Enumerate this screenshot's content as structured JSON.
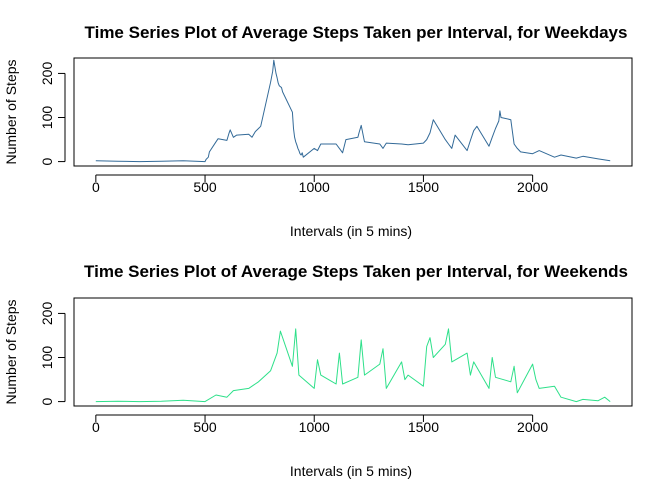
{
  "chart_data": [
    {
      "type": "line",
      "title": "Time Series Plot of Average Steps Taken per Interval, for Weekdays",
      "xlabel": "Intervals (in 5 mins)",
      "ylabel": "Number of Steps",
      "xlim": [
        -100,
        2455
      ],
      "ylim": [
        -10,
        235
      ],
      "xticks": [
        0,
        500,
        1000,
        1500,
        2000
      ],
      "yticks": [
        0,
        100,
        200
      ],
      "grid": false,
      "series": [
        {
          "color": "#336A98",
          "x": [
            0,
            100,
            200,
            300,
            400,
            500,
            505,
            515,
            520,
            550,
            560,
            600,
            610,
            615,
            630,
            645,
            700,
            715,
            730,
            745,
            755,
            800,
            810,
            815,
            820,
            825,
            830,
            835,
            840,
            845,
            850,
            855,
            900,
            905,
            910,
            915,
            920,
            925,
            930,
            935,
            940,
            945,
            950,
            1000,
            1015,
            1030,
            1100,
            1115,
            1130,
            1145,
            1200,
            1205,
            1215,
            1230,
            1300,
            1315,
            1330,
            1400,
            1430,
            1500,
            1515,
            1530,
            1545,
            1600,
            1615,
            1630,
            1645,
            1700,
            1715,
            1730,
            1745,
            1800,
            1815,
            1830,
            1845,
            1850,
            1855,
            1900,
            1915,
            1930,
            1945,
            2000,
            2030,
            2100,
            2130,
            2200,
            2230,
            2300,
            2355
          ],
          "y": [
            2,
            1,
            0,
            1,
            2,
            0,
            5,
            10,
            22,
            45,
            52,
            48,
            65,
            72,
            55,
            60,
            62,
            55,
            68,
            75,
            80,
            180,
            205,
            230,
            215,
            200,
            190,
            178,
            172,
            170,
            168,
            158,
            112,
            75,
            55,
            45,
            38,
            30,
            25,
            18,
            15,
            20,
            10,
            30,
            25,
            40,
            40,
            30,
            20,
            50,
            55,
            65,
            82,
            45,
            40,
            30,
            42,
            40,
            38,
            42,
            50,
            65,
            95,
            50,
            40,
            30,
            60,
            25,
            48,
            70,
            80,
            35,
            55,
            75,
            92,
            115,
            100,
            95,
            40,
            30,
            22,
            18,
            25,
            10,
            15,
            8,
            12,
            6,
            2
          ]
        }
      ]
    },
    {
      "type": "line",
      "title": "Time Series Plot of Average Steps Taken per Interval, for Weekends",
      "xlabel": "Intervals (in 5 mins)",
      "ylabel": "Number of Steps",
      "xlim": [
        -100,
        2455
      ],
      "ylim": [
        -10,
        235
      ],
      "xticks": [
        0,
        500,
        1000,
        1500,
        2000
      ],
      "yticks": [
        0,
        100,
        200
      ],
      "grid": false,
      "series": [
        {
          "color": "#2EE08A",
          "x": [
            0,
            100,
            200,
            300,
            400,
            500,
            550,
            600,
            630,
            700,
            745,
            800,
            830,
            845,
            900,
            915,
            930,
            1000,
            1015,
            1030,
            1100,
            1115,
            1130,
            1200,
            1215,
            1230,
            1300,
            1315,
            1330,
            1400,
            1415,
            1430,
            1500,
            1515,
            1530,
            1545,
            1600,
            1615,
            1630,
            1700,
            1715,
            1730,
            1800,
            1815,
            1830,
            1900,
            1915,
            1930,
            2000,
            2015,
            2030,
            2100,
            2130,
            2200,
            2230,
            2300,
            2330,
            2355
          ],
          "y": [
            0,
            1,
            0,
            1,
            3,
            0,
            15,
            10,
            25,
            30,
            45,
            70,
            110,
            160,
            80,
            165,
            60,
            30,
            95,
            60,
            40,
            110,
            40,
            55,
            140,
            60,
            85,
            120,
            30,
            90,
            50,
            60,
            35,
            125,
            145,
            100,
            130,
            165,
            90,
            110,
            60,
            90,
            30,
            100,
            55,
            45,
            80,
            20,
            85,
            50,
            30,
            35,
            10,
            0,
            5,
            2,
            10,
            0
          ]
        }
      ]
    }
  ]
}
